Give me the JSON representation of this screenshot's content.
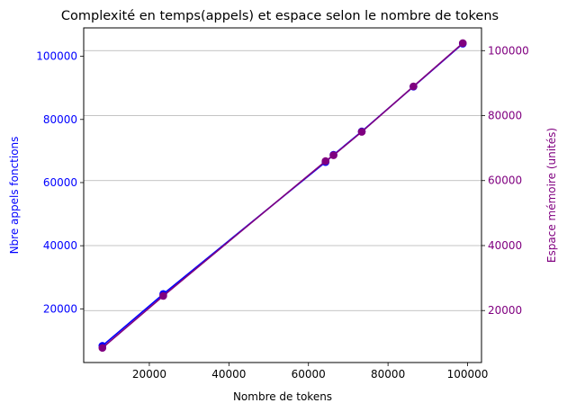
{
  "chart_data": {
    "type": "line",
    "title": "Complexité en temps(appels) et espace selon le nombre de tokens",
    "xlabel": "Nombre de tokens",
    "ylabel_left": "Nbre appels fonctions",
    "ylabel_right": "Espace mémoire (unités)",
    "xlim": [
      3500,
      103500
    ],
    "ylim_left": [
      3000,
      109000
    ],
    "ylim_right": [
      4000,
      107000
    ],
    "x_ticks": [
      20000,
      40000,
      60000,
      80000,
      100000
    ],
    "x_tick_labels": [
      "20000",
      "40000",
      "60000",
      "80000",
      "100000"
    ],
    "y_left_ticks": [
      20000,
      40000,
      60000,
      80000,
      100000
    ],
    "y_left_tick_labels": [
      "20000",
      "40000",
      "60000",
      "80000",
      "100000"
    ],
    "y_right_ticks": [
      20000,
      40000,
      60000,
      80000,
      100000
    ],
    "y_right_tick_labels": [
      "20000",
      "40000",
      "60000",
      "80000",
      "100000"
    ],
    "grid": "y-right",
    "x": [
      8200,
      23500,
      64300,
      66300,
      73400,
      86400,
      98800
    ],
    "series": [
      {
        "axis": "left",
        "color": "#0000ff",
        "values": [
          8300,
          24700,
          66500,
          68800,
          76200,
          90400,
          104000
        ]
      },
      {
        "axis": "right",
        "color": "#800080",
        "values": [
          8500,
          24500,
          66000,
          67800,
          75000,
          89000,
          102300
        ]
      }
    ],
    "colors": {
      "left_axis": "#0000ff",
      "right_axis": "#800080",
      "grid": "#b0b0b0"
    }
  }
}
